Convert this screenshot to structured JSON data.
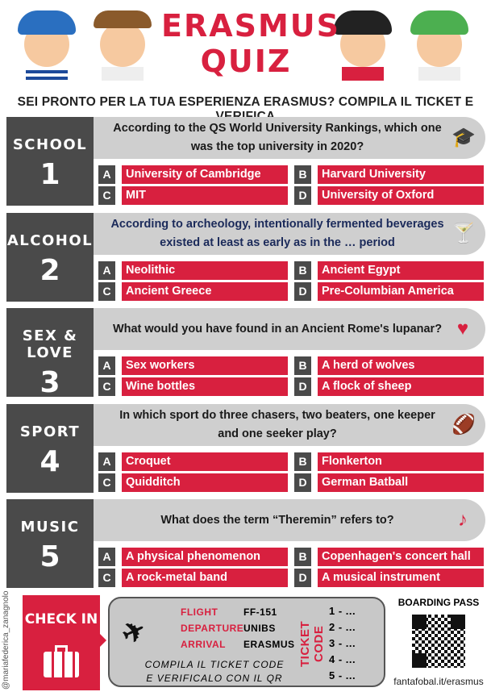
{
  "header": {
    "title_line1": "ERASMUS",
    "title_line2": "QUIZ",
    "subtitle": "SEI PRONTO PER LA TUA ESPERIENZA ERASMUS? COMPILA IL TICKET E VERIFICA"
  },
  "sections": [
    {
      "category": "SCHOOL",
      "number": "1",
      "question": "According to the QS World University Rankings, which one was the top university in 2020?",
      "icon": "graduation-cap-icon",
      "answers": [
        {
          "letter": "A",
          "text": "University of Cambridge"
        },
        {
          "letter": "B",
          "text": "Harvard University"
        },
        {
          "letter": "C",
          "text": "MIT"
        },
        {
          "letter": "D",
          "text": "University of Oxford"
        }
      ]
    },
    {
      "category": "ALCOHOL",
      "number": "2",
      "question": "According to archeology, intentionally fermented beverages existed at least as early as in the … period",
      "icon": "cocktail-icon",
      "answers": [
        {
          "letter": "A",
          "text": "Neolithic"
        },
        {
          "letter": "B",
          "text": "Ancient Egypt"
        },
        {
          "letter": "C",
          "text": "Ancient Greece"
        },
        {
          "letter": "D",
          "text": "Pre-Columbian America"
        }
      ]
    },
    {
      "category": "SEX & LOVE",
      "number": "3",
      "question": "What would you have found in an Ancient Rome's lupanar?",
      "icon": "heart-icon",
      "answers": [
        {
          "letter": "A",
          "text": "Sex workers"
        },
        {
          "letter": "B",
          "text": "A herd of wolves"
        },
        {
          "letter": "C",
          "text": "Wine bottles"
        },
        {
          "letter": "D",
          "text": "A flock of sheep"
        }
      ]
    },
    {
      "category": "SPORT",
      "number": "4",
      "question": "In which sport do three chasers, two beaters, one keeper and one seeker play?",
      "icon": "football-icon",
      "answers": [
        {
          "letter": "A",
          "text": "Croquet"
        },
        {
          "letter": "B",
          "text": "Flonkerton"
        },
        {
          "letter": "C",
          "text": "Quidditch"
        },
        {
          "letter": "D",
          "text": "German Batball"
        }
      ]
    },
    {
      "category": "MUSIC",
      "number": "5",
      "question": "What does the term “Theremin” refers to?",
      "icon": "music-note-icon",
      "answers": [
        {
          "letter": "A",
          "text": "A physical phenomenon"
        },
        {
          "letter": "B",
          "text": "Copenhagen's concert hall"
        },
        {
          "letter": "C",
          "text": "A rock-metal band"
        },
        {
          "letter": "D",
          "text": "A musical instrument"
        }
      ]
    }
  ],
  "footer": {
    "credit": "@mariafederica_zanagnolo",
    "checkin": "CHECK IN",
    "flight_label": "FLIGHT",
    "flight": "FF-151",
    "departure_label": "DEPARTURE",
    "departure": "UNIBS",
    "arrival_label": "ARRIVAL",
    "arrival": "ERASMUS",
    "instructions_1": "COMPILA IL TICKET CODE",
    "instructions_2": "E VERIFICALO CON IL QR",
    "ticket_code_label": "TICKET CODE",
    "codes": [
      "1 - ...",
      "2 - ...",
      "3 - ...",
      "4 - ...",
      "5 - ..."
    ],
    "boarding_pass": "BOARDING PASS",
    "url": "fantafobal.it/erasmus"
  },
  "colors": {
    "accent": "#d8203f",
    "dark": "#4a4a4a",
    "band": "#cfcfcf"
  }
}
